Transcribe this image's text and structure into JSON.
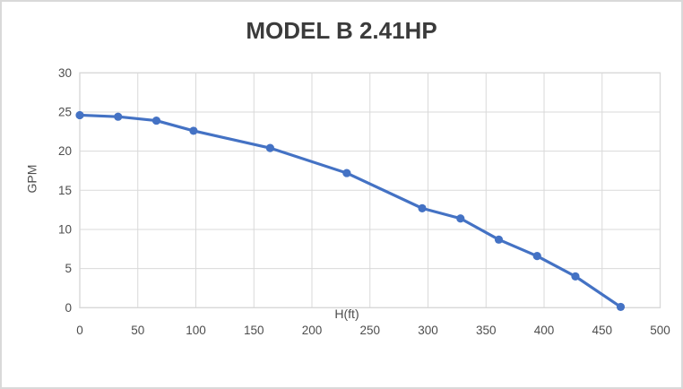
{
  "chart_data": {
    "type": "line",
    "title": "MODEL B 2.41HP",
    "xlabel": "H(ft)",
    "ylabel": "GPM",
    "series": [
      {
        "name": "MODEL B 2.41HP curve",
        "x": [
          0,
          33,
          66,
          98,
          164,
          230,
          295,
          328,
          361,
          394,
          427,
          466
        ],
        "y": [
          24.6,
          24.4,
          23.9,
          22.6,
          20.4,
          17.2,
          12.7,
          11.4,
          8.7,
          6.6,
          4.0,
          0.1
        ],
        "color": "#4472C4",
        "marker": "circle",
        "line_width": 3.2,
        "marker_radius": 4.6
      }
    ],
    "xlim": [
      0,
      500
    ],
    "ylim": [
      0,
      30
    ],
    "x_ticks": [
      0,
      50,
      100,
      150,
      200,
      250,
      300,
      350,
      400,
      450,
      500
    ],
    "y_ticks": [
      0,
      5,
      10,
      15,
      20,
      25,
      30
    ],
    "grid": true,
    "legend": false,
    "colors": {
      "grid": "#d9d9d9",
      "plot_border": "#d9d9d9",
      "axis_text": "#4d4d4d",
      "title_text": "#3b3b3b",
      "background": "#ffffff",
      "frame_border": "#d9d9d9"
    }
  }
}
